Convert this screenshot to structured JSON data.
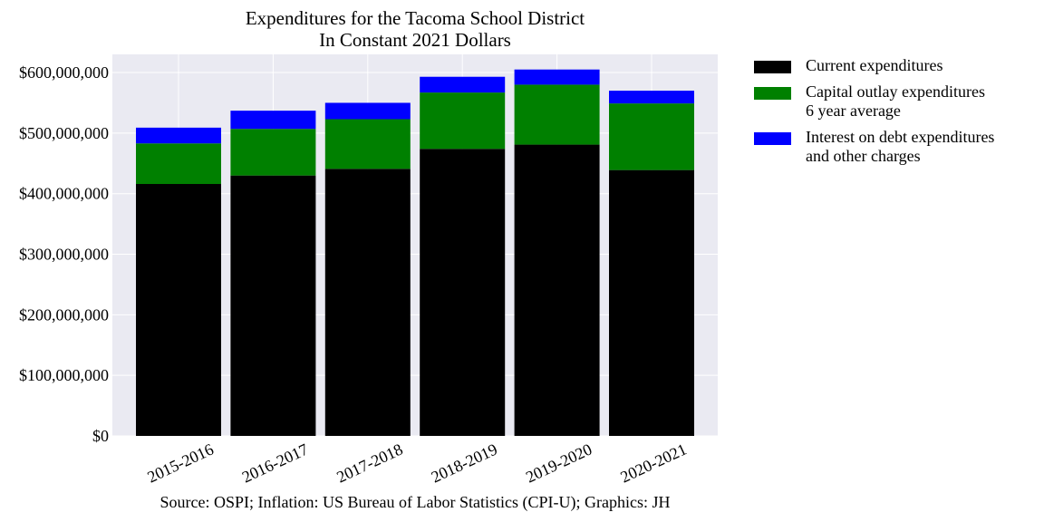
{
  "title": {
    "line1": "Expenditures for the Tacoma School District",
    "line2": "In Constant 2021 Dollars"
  },
  "source": "Source: OSPI; Inflation: US Bureau of Labor Statistics (CPI-U); Graphics: JH",
  "legend": [
    {
      "line1": "Current expenditures",
      "line2": "",
      "color": "#000000"
    },
    {
      "line1": "Capital outlay expenditures",
      "line2": "6 year average",
      "color": "#008000"
    },
    {
      "line1": "Interest on debt expenditures",
      "line2": "and other charges",
      "color": "#0000ff"
    }
  ],
  "chart_data": {
    "type": "bar",
    "stacked": true,
    "categories": [
      "2015-2016",
      "2016-2017",
      "2017-2018",
      "2018-2019",
      "2019-2020",
      "2020-2021"
    ],
    "series": [
      {
        "name": "Current expenditures",
        "color": "#000000",
        "values": [
          416000000,
          430000000,
          441000000,
          474000000,
          481000000,
          439000000
        ]
      },
      {
        "name": "Capital outlay expenditures 6 year average",
        "color": "#008000",
        "values": [
          67000000,
          77000000,
          82000000,
          93000000,
          99000000,
          110000000
        ]
      },
      {
        "name": "Interest on debt expenditures and other charges",
        "color": "#0000ff",
        "values": [
          26000000,
          30000000,
          27000000,
          26000000,
          25000000,
          21000000
        ]
      }
    ],
    "yticks": [
      "$0",
      "$100,000,000",
      "$200,000,000",
      "$300,000,000",
      "$400,000,000",
      "$500,000,000",
      "$600,000,000"
    ],
    "ytick_values": [
      0,
      100000000,
      200000000,
      300000000,
      400000000,
      500000000,
      600000000
    ],
    "ylim": [
      0,
      630000000
    ],
    "grid": true,
    "background": "#eaeaf2",
    "legend_position": "outside-right"
  }
}
